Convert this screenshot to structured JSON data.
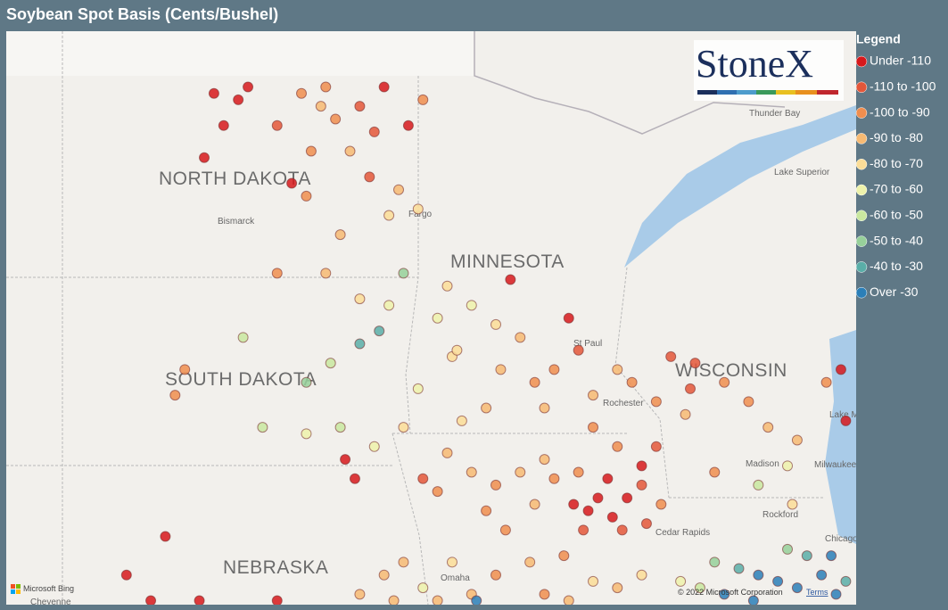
{
  "header": {
    "title": "Soybean Spot Basis (Cents/Bushel)"
  },
  "logo": "StoneX",
  "legend": {
    "title": "Legend",
    "items": [
      {
        "label": "Under -110",
        "color": "#d7191c"
      },
      {
        "label": "-110 to -100",
        "color": "#e4573a"
      },
      {
        "label": "-100 to -90",
        "color": "#f08e4f"
      },
      {
        "label": "-90 to -80",
        "color": "#f7ba73"
      },
      {
        "label": "-80 to -70",
        "color": "#fbdd98"
      },
      {
        "label": "-70 to -60",
        "color": "#eef2ab"
      },
      {
        "label": "-60 to -50",
        "color": "#c9e8a0"
      },
      {
        "label": "-50 to -40",
        "color": "#97d09a"
      },
      {
        "label": "-40 to -30",
        "color": "#5aaea8"
      },
      {
        "label": "Over -30",
        "color": "#2b7fb8"
      }
    ]
  },
  "map": {
    "states": [
      "NORTH DAKOTA",
      "MINNESOTA",
      "SOUTH DAKOTA",
      "WISCONSIN",
      "NEBRASKA"
    ],
    "places": [
      "Bismarck",
      "Fargo",
      "St Paul",
      "Thunder Bay",
      "Lake Superior",
      "Rochester",
      "Madison",
      "Milwaukee",
      "Rockford",
      "Chicago",
      "Omaha",
      "Cedar Rapids",
      "Cheyenne",
      "Lake Michigan"
    ],
    "attribution": "© 2022 Microsoft Corporation",
    "terms": "Terms",
    "provider": "Microsoft Bing"
  },
  "points": [
    [
      -100.8,
      48.8,
      0
    ],
    [
      -100.3,
      48.7,
      0
    ],
    [
      -100.1,
      48.9,
      0
    ],
    [
      -100.6,
      48.3,
      0
    ],
    [
      -101.0,
      47.8,
      0
    ],
    [
      -99.2,
      47.4,
      0
    ],
    [
      -99.0,
      48.8,
      2
    ],
    [
      -98.5,
      48.9,
      2
    ],
    [
      -99.5,
      48.3,
      1
    ],
    [
      -98.3,
      48.4,
      2
    ],
    [
      -97.8,
      48.6,
      1
    ],
    [
      -97.5,
      48.2,
      1
    ],
    [
      -98.8,
      47.9,
      2
    ],
    [
      -98.0,
      47.9,
      3
    ],
    [
      -97.6,
      47.5,
      1
    ],
    [
      -98.6,
      48.6,
      3
    ],
    [
      -97.3,
      48.9,
      0
    ],
    [
      -96.8,
      48.3,
      0
    ],
    [
      -96.5,
      48.7,
      2
    ],
    [
      -98.9,
      47.2,
      2
    ],
    [
      -97.0,
      47.3,
      3
    ],
    [
      -97.2,
      46.9,
      4
    ],
    [
      -96.6,
      47.0,
      4
    ],
    [
      -98.2,
      46.6,
      3
    ],
    [
      -99.5,
      46.0,
      2
    ],
    [
      -98.5,
      46.0,
      3
    ],
    [
      -97.8,
      45.6,
      4
    ],
    [
      -97.2,
      45.5,
      5
    ],
    [
      -96.9,
      46.0,
      7
    ],
    [
      -97.4,
      45.1,
      8
    ],
    [
      -97.8,
      44.9,
      8
    ],
    [
      -98.9,
      44.3,
      7
    ],
    [
      -98.4,
      44.6,
      6
    ],
    [
      -100.2,
      45.0,
      6
    ],
    [
      -101.4,
      44.5,
      2
    ],
    [
      -101.6,
      44.1,
      2
    ],
    [
      -99.8,
      43.6,
      6
    ],
    [
      -98.9,
      43.5,
      5
    ],
    [
      -98.2,
      43.6,
      6
    ],
    [
      -97.5,
      43.3,
      5
    ],
    [
      -96.9,
      43.6,
      4
    ],
    [
      -96.6,
      44.2,
      5
    ],
    [
      -95.9,
      44.7,
      4
    ],
    [
      -96.2,
      45.3,
      5
    ],
    [
      -98.1,
      43.1,
      0
    ],
    [
      -97.9,
      42.8,
      0
    ],
    [
      -96.5,
      42.8,
      1
    ],
    [
      -96.2,
      42.6,
      2
    ],
    [
      -101.8,
      41.9,
      0
    ],
    [
      -102.6,
      41.3,
      0
    ],
    [
      -102.1,
      40.9,
      0
    ],
    [
      -101.1,
      40.9,
      0
    ],
    [
      -99.5,
      40.9,
      0
    ],
    [
      -97.3,
      41.3,
      3
    ],
    [
      -96.9,
      41.5,
      3
    ],
    [
      -96.5,
      41.1,
      5
    ],
    [
      -95.9,
      41.5,
      4
    ],
    [
      -96.2,
      40.9,
      3
    ],
    [
      -97.8,
      41.0,
      3
    ],
    [
      -97.1,
      40.9,
      3
    ],
    [
      -96.0,
      45.8,
      4
    ],
    [
      -95.5,
      45.5,
      5
    ],
    [
      -95.0,
      45.2,
      4
    ],
    [
      -94.5,
      45.0,
      3
    ],
    [
      -95.8,
      44.8,
      4
    ],
    [
      -94.9,
      44.5,
      3
    ],
    [
      -94.2,
      44.3,
      2
    ],
    [
      -93.8,
      44.5,
      2
    ],
    [
      -94.7,
      45.9,
      0
    ],
    [
      -93.5,
      45.3,
      0
    ],
    [
      -93.3,
      44.8,
      1
    ],
    [
      -92.5,
      44.5,
      3
    ],
    [
      -93.0,
      44.1,
      3
    ],
    [
      -92.2,
      44.3,
      2
    ],
    [
      -91.7,
      44.0,
      2
    ],
    [
      -94.0,
      43.9,
      3
    ],
    [
      -95.2,
      43.9,
      3
    ],
    [
      -95.7,
      43.7,
      4
    ],
    [
      -93.0,
      43.6,
      2
    ],
    [
      -96.0,
      43.2,
      3
    ],
    [
      -95.5,
      42.9,
      3
    ],
    [
      -95.0,
      42.7,
      2
    ],
    [
      -94.5,
      42.9,
      3
    ],
    [
      -94.0,
      43.1,
      3
    ],
    [
      -95.2,
      42.3,
      2
    ],
    [
      -94.8,
      42.0,
      2
    ],
    [
      -94.2,
      42.4,
      3
    ],
    [
      -93.8,
      42.8,
      2
    ],
    [
      -93.3,
      42.9,
      2
    ],
    [
      -93.6,
      41.6,
      2
    ],
    [
      -94.3,
      41.5,
      3
    ],
    [
      -95.0,
      41.3,
      2
    ],
    [
      -95.5,
      41.0,
      3
    ],
    [
      -93.0,
      41.2,
      4
    ],
    [
      -92.5,
      41.1,
      3
    ],
    [
      -92.0,
      41.3,
      4
    ],
    [
      -94.0,
      41.0,
      2
    ],
    [
      -93.5,
      40.9,
      3
    ],
    [
      -93.4,
      42.4,
      0
    ],
    [
      -93.1,
      42.3,
      0
    ],
    [
      -92.9,
      42.5,
      0
    ],
    [
      -92.6,
      42.2,
      0
    ],
    [
      -92.3,
      42.5,
      0
    ],
    [
      -92.0,
      42.7,
      1
    ],
    [
      -92.7,
      42.8,
      0
    ],
    [
      -92.4,
      42.0,
      1
    ],
    [
      -93.2,
      42.0,
      1
    ],
    [
      -91.9,
      42.1,
      1
    ],
    [
      -91.6,
      42.4,
      2
    ],
    [
      -92.0,
      43.0,
      0
    ],
    [
      -91.7,
      43.3,
      1
    ],
    [
      -92.5,
      43.3,
      2
    ],
    [
      -91.4,
      44.7,
      1
    ],
    [
      -90.9,
      44.6,
      1
    ],
    [
      -91.0,
      44.2,
      1
    ],
    [
      -90.3,
      44.3,
      2
    ],
    [
      -89.8,
      44.0,
      2
    ],
    [
      -89.4,
      43.6,
      3
    ],
    [
      -88.8,
      43.4,
      3
    ],
    [
      -88.2,
      44.3,
      2
    ],
    [
      -87.9,
      44.5,
      0
    ],
    [
      -87.8,
      43.7,
      0
    ],
    [
      -89.0,
      43.0,
      5
    ],
    [
      -89.6,
      42.7,
      6
    ],
    [
      -88.9,
      42.4,
      4
    ],
    [
      -90.5,
      42.9,
      2
    ],
    [
      -91.1,
      43.8,
      3
    ],
    [
      -90.5,
      41.5,
      7
    ],
    [
      -90.0,
      41.4,
      8
    ],
    [
      -89.6,
      41.3,
      9
    ],
    [
      -89.2,
      41.2,
      9
    ],
    [
      -88.8,
      41.1,
      9
    ],
    [
      -88.3,
      41.3,
      9
    ],
    [
      -88.6,
      41.6,
      8
    ],
    [
      -89.0,
      41.7,
      7
    ],
    [
      -90.3,
      41.0,
      9
    ],
    [
      -89.7,
      40.9,
      9
    ],
    [
      -88.0,
      41.0,
      9
    ],
    [
      -88.1,
      41.6,
      9
    ],
    [
      -87.8,
      41.2,
      8
    ],
    [
      -90.8,
      41.1,
      6
    ],
    [
      -91.2,
      41.2,
      5
    ],
    [
      -95.4,
      40.9,
      9
    ]
  ]
}
